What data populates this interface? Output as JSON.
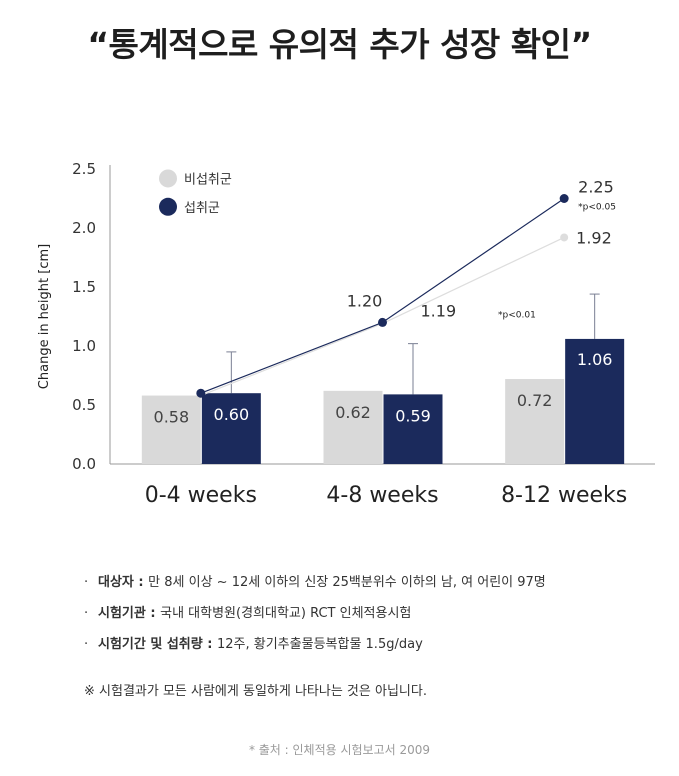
{
  "headline": "“통계적으로 유의적 추가 성장 확인”",
  "chart_data": {
    "type": "bar",
    "ylabel": "Change in height [cm]",
    "ylim": [
      0,
      2.5
    ],
    "yticks": [
      "0.0",
      "0.5",
      "1.0",
      "1.5",
      "2.0",
      "2.5"
    ],
    "categories": [
      "0-4 weeks",
      "4-8 weeks",
      "8-12 weeks"
    ],
    "legend_position": "top-left",
    "series": [
      {
        "name": "비섭취군",
        "values": [
          0.58,
          0.62,
          0.72
        ],
        "labels": [
          "0.58",
          "0.62",
          "0.72"
        ],
        "color": "#d9d9d9"
      },
      {
        "name": "섭취군",
        "values": [
          0.6,
          0.59,
          1.06
        ],
        "labels": [
          "0.60",
          "0.59",
          "1.06"
        ],
        "color": "#1b2a5c",
        "error_upper": [
          0.95,
          1.02,
          1.44
        ]
      }
    ],
    "cumulative_lines": [
      {
        "series": "비섭취군",
        "values": [
          0.58,
          1.19,
          1.92
        ],
        "labels": [
          "",
          "1.19",
          "1.92"
        ],
        "color": "#dddddd"
      },
      {
        "series": "섭취군",
        "values": [
          0.6,
          1.2,
          2.25
        ],
        "labels": [
          "",
          "1.20",
          "2.25"
        ],
        "color": "#1b2a5c"
      }
    ],
    "annotations": [
      "*p<0.05",
      "*p<0.01"
    ]
  },
  "notes": [
    {
      "key": "대상자",
      "sep": " : ",
      "text": "만 8세 이상 ~ 12세 이하의 신장 25백분위수 이하의 남, 여 어린이 97명"
    },
    {
      "key": "시험기관",
      "sep": " : ",
      "text": "국내 대학병원(경희대학교) RCT 인체적용시험"
    },
    {
      "key": "시험기간 및 섭취량",
      "sep": " : ",
      "text": "12주, 황기추출물등복합물 1.5g/day"
    }
  ],
  "disclaimer": "※ 시험결과가 모든 사람에게 동일하게 나타나는 것은 아닙니다.",
  "source": "* 출처 : 인체적용 시험보고서 2009"
}
